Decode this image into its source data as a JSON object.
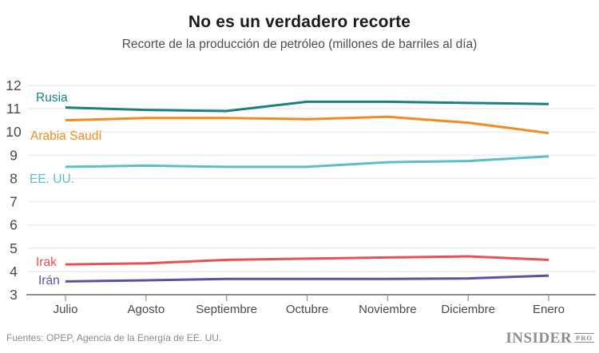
{
  "header": {
    "title": "No es un verdadero recorte",
    "subtitle": "Recorte de la producción de petróleo (millones de barriles al día)"
  },
  "chart_data": {
    "type": "line",
    "title": "No es un verdadero recorte",
    "subtitle": "Recorte de la producción de petróleo (millones de barriles al día)",
    "categories": [
      "Julio",
      "Agosto",
      "Septiembre",
      "Octubre",
      "Noviembre",
      "Diciembre",
      "Enero"
    ],
    "series": [
      {
        "name": "Rusia",
        "color": "#1a7f80",
        "values": [
          11.05,
          10.95,
          10.9,
          11.3,
          11.3,
          11.25,
          11.2
        ]
      },
      {
        "name": "Arabia Saudí",
        "color": "#ef8c22",
        "values": [
          10.5,
          10.6,
          10.6,
          10.55,
          10.65,
          10.4,
          9.95
        ]
      },
      {
        "name": "EE. UU.",
        "color": "#5fbdc5",
        "values": [
          8.5,
          8.55,
          8.5,
          8.5,
          8.7,
          8.75,
          8.95
        ]
      },
      {
        "name": "Irak",
        "color": "#ea4f58",
        "values": [
          4.3,
          4.35,
          4.5,
          4.55,
          4.6,
          4.65,
          4.5
        ]
      },
      {
        "name": "Irán",
        "color": "#5a53a0",
        "values": [
          3.57,
          3.62,
          3.68,
          3.68,
          3.68,
          3.7,
          3.82
        ]
      }
    ],
    "xlabel": "",
    "ylabel": "",
    "ylim": [
      3,
      12
    ],
    "yticks": [
      3,
      4,
      5,
      6,
      7,
      8,
      9,
      10,
      11,
      12
    ],
    "grid": true,
    "legend_position": "inline-labels",
    "colors": {
      "grid": "#ececec",
      "axis": "#8f8f8f",
      "tick_text": "#4a4a4a",
      "title_text": "#1b1b1b",
      "subtitle_text": "#4d4d4d"
    }
  },
  "footer": {
    "source": "Fuentes: OPEP, Agencia de la Energía de EE. UU.",
    "logo_main": "INSIDER",
    "logo_suffix": "PRO"
  }
}
